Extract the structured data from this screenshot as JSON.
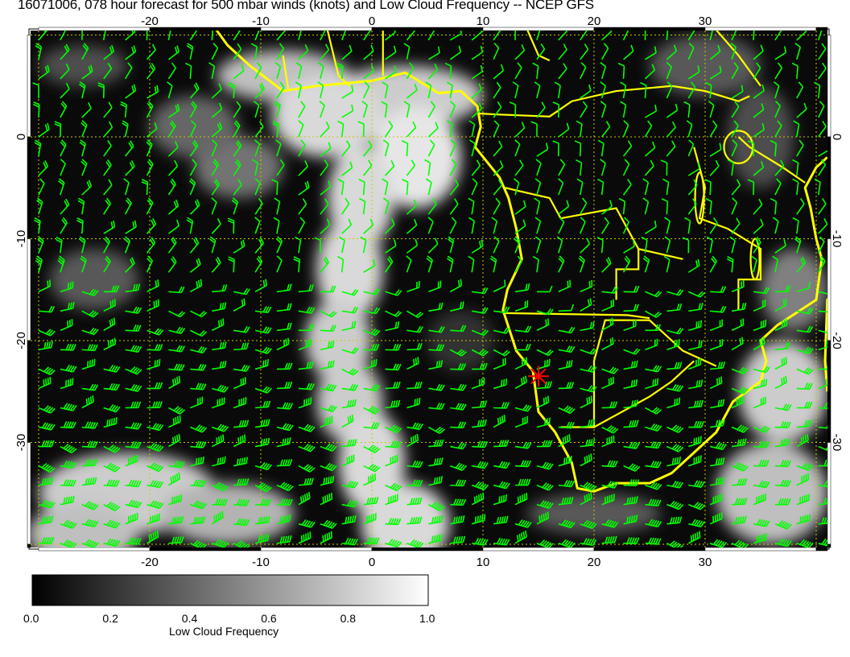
{
  "title": "16071006, 078 hour forecast for 500 mbar winds (knots) and Low Cloud Frequency -- NCEP GFS",
  "map": {
    "lon_range": [
      -31,
      41
    ],
    "lat_range": [
      -40.5,
      10.5
    ],
    "lon_ticks": [
      "-20",
      "-10",
      "0",
      "10",
      "20",
      "30"
    ],
    "lat_ticks": [
      "0",
      "-10",
      "-20",
      "-30"
    ],
    "coastline_color": "#ffff00",
    "wind_barb_color": "#00ff00",
    "grid_color": "#c8c800",
    "marker": {
      "lon": 15,
      "lat": -23.5,
      "color": "#ff0000",
      "symbol": "asterisk"
    }
  },
  "colorbar": {
    "label": "Low Cloud Frequency",
    "ticks": [
      "0.0",
      "0.2",
      "0.4",
      "0.6",
      "0.8",
      "1.0"
    ],
    "range": [
      0,
      1
    ],
    "colormap": "black-to-white"
  }
}
